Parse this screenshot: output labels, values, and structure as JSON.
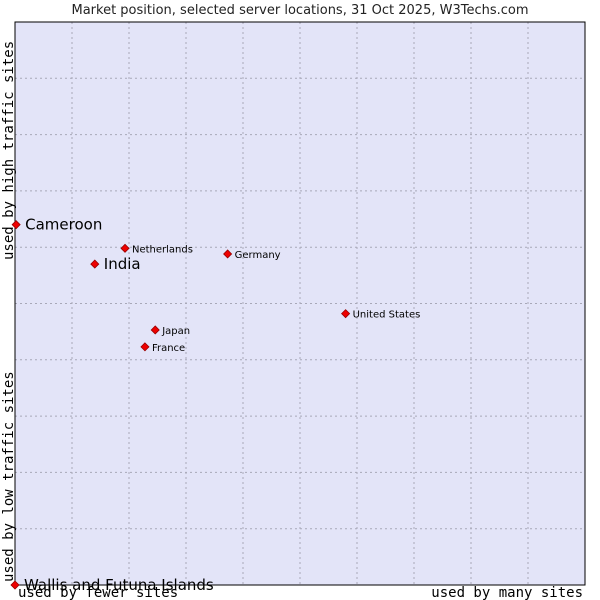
{
  "chart_data": {
    "type": "scatter",
    "title": "Market position, selected server locations, 31 Oct 2025, W3Techs.com",
    "xlabel_left": "used by fewer sites",
    "xlabel_right": "used by many sites",
    "ylabel_bottom": "used by low traffic sites",
    "ylabel_top": "used by high traffic sites",
    "xlim": [
      0,
      10
    ],
    "ylim": [
      0,
      10
    ],
    "grid": true,
    "colors": {
      "plot_background": "#e3e4f8",
      "grid": "#a8a8b8",
      "point": "#ee0000",
      "point_outline": "#990000",
      "border": "#000000"
    },
    "points": [
      {
        "name": "Cameroon",
        "x": 0.02,
        "y": 6.4,
        "label_size": "large",
        "label_dx": 1
      },
      {
        "name": "India",
        "x": 1.4,
        "y": 5.7,
        "label_size": "large",
        "label_dx": 1
      },
      {
        "name": "Netherlands",
        "x": 1.93,
        "y": 5.98,
        "label_size": "small",
        "label_dx": 1
      },
      {
        "name": "Germany",
        "x": 3.73,
        "y": 5.88,
        "label_size": "small",
        "label_dx": 1
      },
      {
        "name": "United States",
        "x": 5.8,
        "y": 4.82,
        "label_size": "small",
        "label_dx": 1
      },
      {
        "name": "Japan",
        "x": 2.46,
        "y": 4.53,
        "label_size": "small",
        "label_dx": 1
      },
      {
        "name": "France",
        "x": 2.28,
        "y": 4.23,
        "label_size": "small",
        "label_dx": 1
      },
      {
        "name": "Wallis and Futuna Islands",
        "x": 0.0,
        "y": 0.0,
        "label_size": "large",
        "label_dx": 1
      }
    ]
  }
}
